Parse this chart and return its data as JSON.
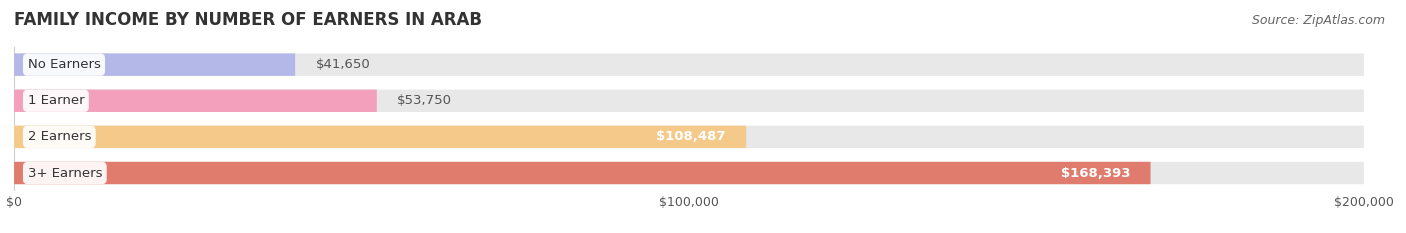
{
  "title": "FAMILY INCOME BY NUMBER OF EARNERS IN ARAB",
  "source": "Source: ZipAtlas.com",
  "categories": [
    "No Earners",
    "1 Earner",
    "2 Earners",
    "3+ Earners"
  ],
  "values": [
    41650,
    53750,
    108487,
    168393
  ],
  "value_labels": [
    "$41,650",
    "$53,750",
    "$108,487",
    "$168,393"
  ],
  "bar_colors": [
    "#b3b8e8",
    "#f2a0bc",
    "#f5c98a",
    "#e07c6e"
  ],
  "bar_bg_color": "#e8e8e8",
  "background_color": "#ffffff",
  "xlim": [
    0,
    200000
  ],
  "xtick_labels": [
    "$0",
    "$100,000",
    "$200,000"
  ],
  "xtick_values": [
    0,
    100000,
    200000
  ],
  "label_inside_threshold": 80000,
  "title_fontsize": 12,
  "source_fontsize": 9,
  "label_fontsize": 9.5,
  "value_fontsize": 9.5,
  "tick_fontsize": 9
}
